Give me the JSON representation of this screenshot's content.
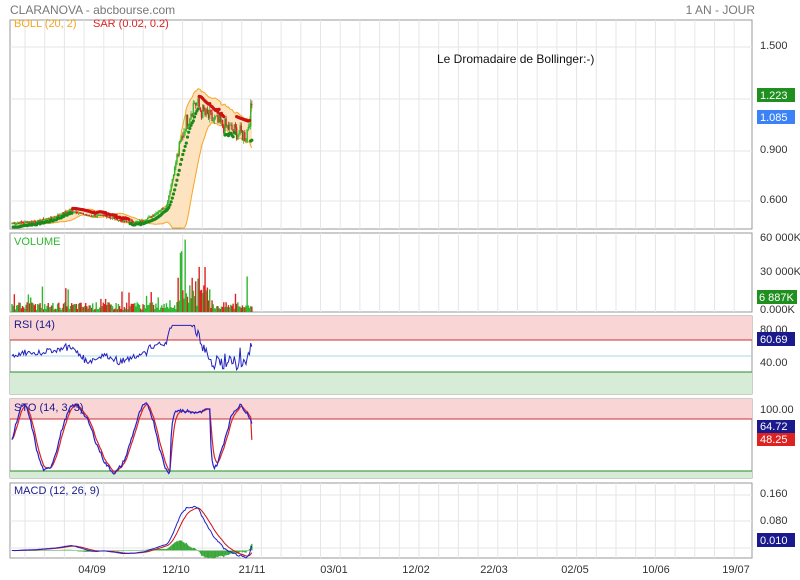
{
  "header": {
    "title": "CLARANOVA - abcbourse.com",
    "period": "1 AN - JOUR"
  },
  "colors": {
    "grid": "#e6e6e6",
    "frame": "#9a9a9a",
    "up": "#2fb82f",
    "down": "#dd2222",
    "boll_line": "#f5a623",
    "boll_fill": "#fde3c0",
    "sar_up": "#1a8a1a",
    "sar_down": "#cc1111",
    "rsi_line": "#2222bb",
    "sto_k": "#2222cc",
    "sto_d": "#dd2222",
    "macd_line": "#2222cc",
    "signal_line": "#cc1111",
    "hist": "#3aa63a",
    "zone_high": "#f9d5d5",
    "zone_low": "#d7ecd7",
    "tag_green": "#1f8f1f",
    "tag_blue": "#3b82f6",
    "tag_navy": "#1a1a8c",
    "tag_red": "#dd2222"
  },
  "chart_data": [
    {
      "type": "candlestick",
      "panel": "price",
      "legend": [
        "BOLL (20, 2)",
        "SAR (0.02, 0.2)"
      ],
      "annotation": "Le Dromadaire de Bollinger:-)",
      "yticks": [
        "1.500",
        "1.200",
        "0.900",
        "0.600"
      ],
      "ylim": [
        0.45,
        1.55
      ],
      "last_close": "1.223",
      "last_open": "1.085",
      "xticks": [
        "04/09",
        "12/10",
        "21/11",
        "03/01",
        "12/02",
        "22/03",
        "02/05",
        "10/06",
        "19/07"
      ],
      "anchors": [
        [
          0,
          0.48
        ],
        [
          20,
          0.49
        ],
        [
          35,
          0.51
        ],
        [
          50,
          0.55
        ],
        [
          65,
          0.52
        ],
        [
          80,
          0.52
        ],
        [
          95,
          0.49
        ],
        [
          110,
          0.49
        ],
        [
          120,
          0.52
        ],
        [
          132,
          0.57
        ],
        [
          140,
          0.8
        ],
        [
          148,
          1.0
        ],
        [
          156,
          1.12
        ],
        [
          165,
          1.05
        ],
        [
          175,
          1.01
        ],
        [
          185,
          0.98
        ],
        [
          200,
          0.94
        ],
        [
          205,
          1.1
        ]
      ]
    },
    {
      "type": "bar",
      "panel": "volume",
      "legend": "VOLUME",
      "yticks": [
        "60 000K",
        "30 000K",
        "0.000K"
      ],
      "ylim": [
        0,
        60000
      ],
      "last": "6 887K"
    },
    {
      "type": "line",
      "panel": "rsi",
      "legend": "RSI (14)",
      "yticks": [
        "80.00",
        "40.00"
      ],
      "ylim": [
        0,
        100
      ],
      "last": "60.69"
    },
    {
      "type": "line",
      "panel": "sto",
      "legend": "STO (14, 3, 3)",
      "yticks": [
        "100.00"
      ],
      "ylim": [
        0,
        100
      ],
      "last_k": "64.72",
      "last_d": "48.25"
    },
    {
      "type": "line",
      "panel": "macd",
      "legend": "MACD (12, 26, 9)",
      "yticks": [
        "0.160",
        "0.080"
      ],
      "ylim": [
        -0.02,
        0.18
      ],
      "last": "0.010"
    }
  ]
}
